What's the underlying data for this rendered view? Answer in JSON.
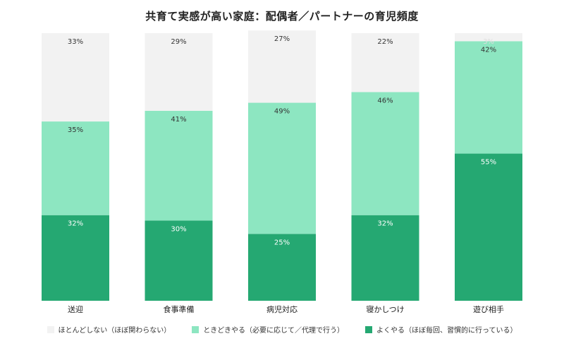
{
  "chart_data": {
    "type": "bar",
    "stacked": true,
    "percent": true,
    "title": "共育て実感が高い家庭：配偶者／パートナーの育児頻度",
    "categories": [
      "送迎",
      "食事準備",
      "病児対応",
      "寝かしつけ",
      "遊び相手"
    ],
    "series": [
      {
        "name": "よくやる（ほぼ毎回、習慣的に行っている）",
        "color": "#25a872",
        "label_color": "#ffffff",
        "values": [
          32,
          30,
          25,
          32,
          55
        ]
      },
      {
        "name": "ときどきやる（必要に応じて／代理で行う）",
        "color": "#8de6c1",
        "label_color": "#333333",
        "values": [
          35,
          41,
          49,
          46,
          42
        ]
      },
      {
        "name": "ほとんどしない（ほぼ関わらない）",
        "color": "#f2f2f2",
        "label_color": "#333333",
        "values": [
          33,
          29,
          27,
          22,
          3
        ]
      }
    ],
    "value_suffix": "%",
    "legend_position": "bottom",
    "ylim": [
      0,
      100
    ],
    "grid": false
  }
}
